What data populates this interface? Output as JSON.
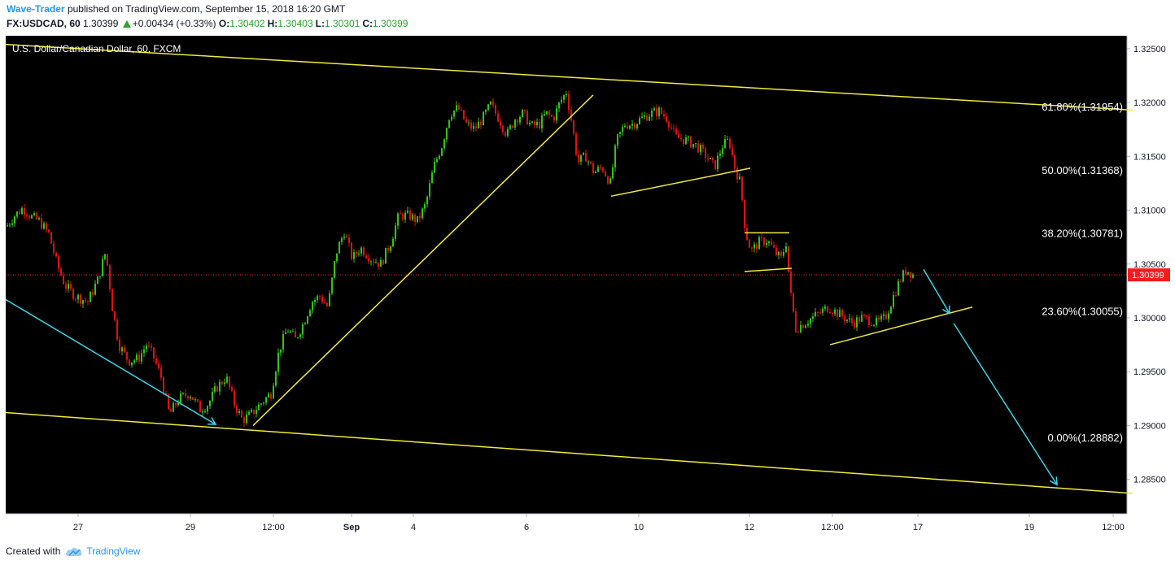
{
  "header": {
    "author": "Wave-Trader",
    "published_text": "published on TradingView.com, September 15, 2018 16:20 GMT",
    "symbol_line": "FX:USDCAD, 60",
    "last_price": "1.30399",
    "change": "+0.00434 (+0.33%)",
    "o_label": "O:",
    "o_value": "1.30402",
    "h_label": "H:",
    "h_value": "1.30403",
    "l_label": "L:",
    "l_value": "1.30301",
    "c_label": "C:",
    "c_value": "1.30399"
  },
  "footer": {
    "created_with": "Created with",
    "brand": "TradingView"
  },
  "colors": {
    "background": "#000000",
    "up_candle": "#2ec714",
    "down_candle": "#e01010",
    "trendline": "#f2eb3a",
    "arrow": "#3ad6e8",
    "price_marker": "#f41c1c",
    "axis_text": "#131722"
  },
  "chart_data": {
    "type": "candlestick",
    "title": "U.S. Dollar/Canadian Dollar, 60, FXCM",
    "ylim": [
      1.2818,
      1.3262
    ],
    "y_ticks": [
      "1.28500",
      "1.29000",
      "1.29500",
      "1.30000",
      "1.30500",
      "1.31000",
      "1.31500",
      "1.32000",
      "1.32500"
    ],
    "x_ticks": [
      "27",
      "29",
      "12:00",
      "Sep",
      "4",
      "6",
      "10",
      "12",
      "12:00",
      "17",
      "19",
      "12:00"
    ],
    "current_price": {
      "value": 1.30399,
      "label": "1.30399"
    },
    "fib_levels": [
      {
        "label": "61.80%(1.31954)",
        "value": 1.31954
      },
      {
        "label": "50.00%(1.31368)",
        "value": 1.31368
      },
      {
        "label": "38.20%(1.30781)",
        "value": 1.30781
      },
      {
        "label": "23.60%(1.30055)",
        "value": 1.30055
      },
      {
        "label": "0.00%(1.28882)",
        "value": 1.28882
      }
    ],
    "price_path": [
      {
        "x": 0,
        "y": 1.3085
      },
      {
        "x": 10,
        "y": 1.3095
      },
      {
        "x": 20,
        "y": 1.3102
      },
      {
        "x": 30,
        "y": 1.3094
      },
      {
        "x": 40,
        "y": 1.309
      },
      {
        "x": 52,
        "y": 1.3078
      },
      {
        "x": 62,
        "y": 1.305
      },
      {
        "x": 72,
        "y": 1.303
      },
      {
        "x": 85,
        "y": 1.302
      },
      {
        "x": 100,
        "y": 1.3015
      },
      {
        "x": 112,
        "y": 1.3035
      },
      {
        "x": 122,
        "y": 1.3062
      },
      {
        "x": 130,
        "y": 1.301
      },
      {
        "x": 138,
        "y": 1.2975
      },
      {
        "x": 150,
        "y": 1.296
      },
      {
        "x": 162,
        "y": 1.2962
      },
      {
        "x": 172,
        "y": 1.2975
      },
      {
        "x": 180,
        "y": 1.2965
      },
      {
        "x": 190,
        "y": 1.2945
      },
      {
        "x": 200,
        "y": 1.291
      },
      {
        "x": 212,
        "y": 1.2925
      },
      {
        "x": 225,
        "y": 1.293
      },
      {
        "x": 238,
        "y": 1.2915
      },
      {
        "x": 248,
        "y": 1.292
      },
      {
        "x": 258,
        "y": 1.2935
      },
      {
        "x": 270,
        "y": 1.2945
      },
      {
        "x": 280,
        "y": 1.292
      },
      {
        "x": 290,
        "y": 1.2905
      },
      {
        "x": 300,
        "y": 1.291
      },
      {
        "x": 312,
        "y": 1.292
      },
      {
        "x": 325,
        "y": 1.293
      },
      {
        "x": 335,
        "y": 1.297
      },
      {
        "x": 345,
        "y": 1.299
      },
      {
        "x": 355,
        "y": 1.298
      },
      {
        "x": 365,
        "y": 1.2995
      },
      {
        "x": 375,
        "y": 1.3015
      },
      {
        "x": 385,
        "y": 1.302
      },
      {
        "x": 395,
        "y": 1.301
      },
      {
        "x": 405,
        "y": 1.306
      },
      {
        "x": 415,
        "y": 1.308
      },
      {
        "x": 425,
        "y": 1.3055
      },
      {
        "x": 435,
        "y": 1.3065
      },
      {
        "x": 448,
        "y": 1.3055
      },
      {
        "x": 460,
        "y": 1.305
      },
      {
        "x": 472,
        "y": 1.307
      },
      {
        "x": 482,
        "y": 1.3095
      },
      {
        "x": 495,
        "y": 1.3095
      },
      {
        "x": 505,
        "y": 1.309
      },
      {
        "x": 515,
        "y": 1.3105
      },
      {
        "x": 525,
        "y": 1.314
      },
      {
        "x": 535,
        "y": 1.316
      },
      {
        "x": 545,
        "y": 1.319
      },
      {
        "x": 555,
        "y": 1.3195
      },
      {
        "x": 565,
        "y": 1.318
      },
      {
        "x": 575,
        "y": 1.3175
      },
      {
        "x": 585,
        "y": 1.3185
      },
      {
        "x": 595,
        "y": 1.3198
      },
      {
        "x": 605,
        "y": 1.3185
      },
      {
        "x": 615,
        "y": 1.317
      },
      {
        "x": 625,
        "y": 1.3185
      },
      {
        "x": 635,
        "y": 1.319
      },
      {
        "x": 645,
        "y": 1.3178
      },
      {
        "x": 655,
        "y": 1.318
      },
      {
        "x": 663,
        "y": 1.319
      },
      {
        "x": 672,
        "y": 1.3185
      },
      {
        "x": 680,
        "y": 1.32
      },
      {
        "x": 688,
        "y": 1.321
      },
      {
        "x": 695,
        "y": 1.318
      },
      {
        "x": 702,
        "y": 1.3145
      },
      {
        "x": 712,
        "y": 1.315
      },
      {
        "x": 722,
        "y": 1.3135
      },
      {
        "x": 732,
        "y": 1.314
      },
      {
        "x": 742,
        "y": 1.3125
      },
      {
        "x": 750,
        "y": 1.3165
      },
      {
        "x": 760,
        "y": 1.318
      },
      {
        "x": 770,
        "y": 1.318
      },
      {
        "x": 780,
        "y": 1.3185
      },
      {
        "x": 792,
        "y": 1.319
      },
      {
        "x": 802,
        "y": 1.3192
      },
      {
        "x": 812,
        "y": 1.3185
      },
      {
        "x": 822,
        "y": 1.3168
      },
      {
        "x": 835,
        "y": 1.3165
      },
      {
        "x": 848,
        "y": 1.316
      },
      {
        "x": 860,
        "y": 1.315
      },
      {
        "x": 870,
        "y": 1.314
      },
      {
        "x": 880,
        "y": 1.316
      },
      {
        "x": 888,
        "y": 1.3165
      },
      {
        "x": 895,
        "y": 1.314
      },
      {
        "x": 902,
        "y": 1.3125
      },
      {
        "x": 908,
        "y": 1.308
      },
      {
        "x": 915,
        "y": 1.3062
      },
      {
        "x": 925,
        "y": 1.307
      },
      {
        "x": 935,
        "y": 1.3072
      },
      {
        "x": 945,
        "y": 1.306
      },
      {
        "x": 952,
        "y": 1.3055
      },
      {
        "x": 958,
        "y": 1.307
      },
      {
        "x": 963,
        "y": 1.3025
      },
      {
        "x": 970,
        "y": 1.299
      },
      {
        "x": 980,
        "y": 1.2995
      },
      {
        "x": 990,
        "y": 1.3
      },
      {
        "x": 1000,
        "y": 1.3005
      },
      {
        "x": 1010,
        "y": 1.301
      },
      {
        "x": 1020,
        "y": 1.3005
      },
      {
        "x": 1030,
        "y": 1.3
      },
      {
        "x": 1040,
        "y": 1.2995
      },
      {
        "x": 1050,
        "y": 1.3
      },
      {
        "x": 1060,
        "y": 1.2998
      },
      {
        "x": 1070,
        "y": 1.2995
      },
      {
        "x": 1080,
        "y": 1.3
      },
      {
        "x": 1090,
        "y": 1.302
      },
      {
        "x": 1098,
        "y": 1.3035
      },
      {
        "x": 1106,
        "y": 1.3045
      },
      {
        "x": 1114,
        "y": 1.304
      }
    ],
    "trendlines": [
      {
        "x1": 0,
        "y1": 1.3254,
        "x2": 1385,
        "y2": 1.3193
      },
      {
        "x1": 0,
        "y1": 1.2912,
        "x2": 1385,
        "y2": 1.2837
      },
      {
        "x1": 304,
        "y1": 1.29,
        "x2": 722,
        "y2": 1.3207
      },
      {
        "x1": 744,
        "y1": 1.3113,
        "x2": 915,
        "y2": 1.3139
      },
      {
        "x1": 908,
        "y1": 1.3079,
        "x2": 963,
        "y2": 1.3079
      },
      {
        "x1": 908,
        "y1": 1.3043,
        "x2": 966,
        "y2": 1.3046
      },
      {
        "x1": 1013,
        "y1": 1.2975,
        "x2": 1188,
        "y2": 1.301
      }
    ],
    "arrows": [
      {
        "x1": 0,
        "y1": 1.3017,
        "x2": 258,
        "y2": 1.2901,
        "head": true
      },
      {
        "x1": 1128,
        "y1": 1.3045,
        "x2": 1160,
        "y2": 1.3004,
        "head": true
      },
      {
        "x1": 1165,
        "y1": 1.2995,
        "x2": 1292,
        "y2": 1.2845,
        "head": true
      }
    ]
  }
}
